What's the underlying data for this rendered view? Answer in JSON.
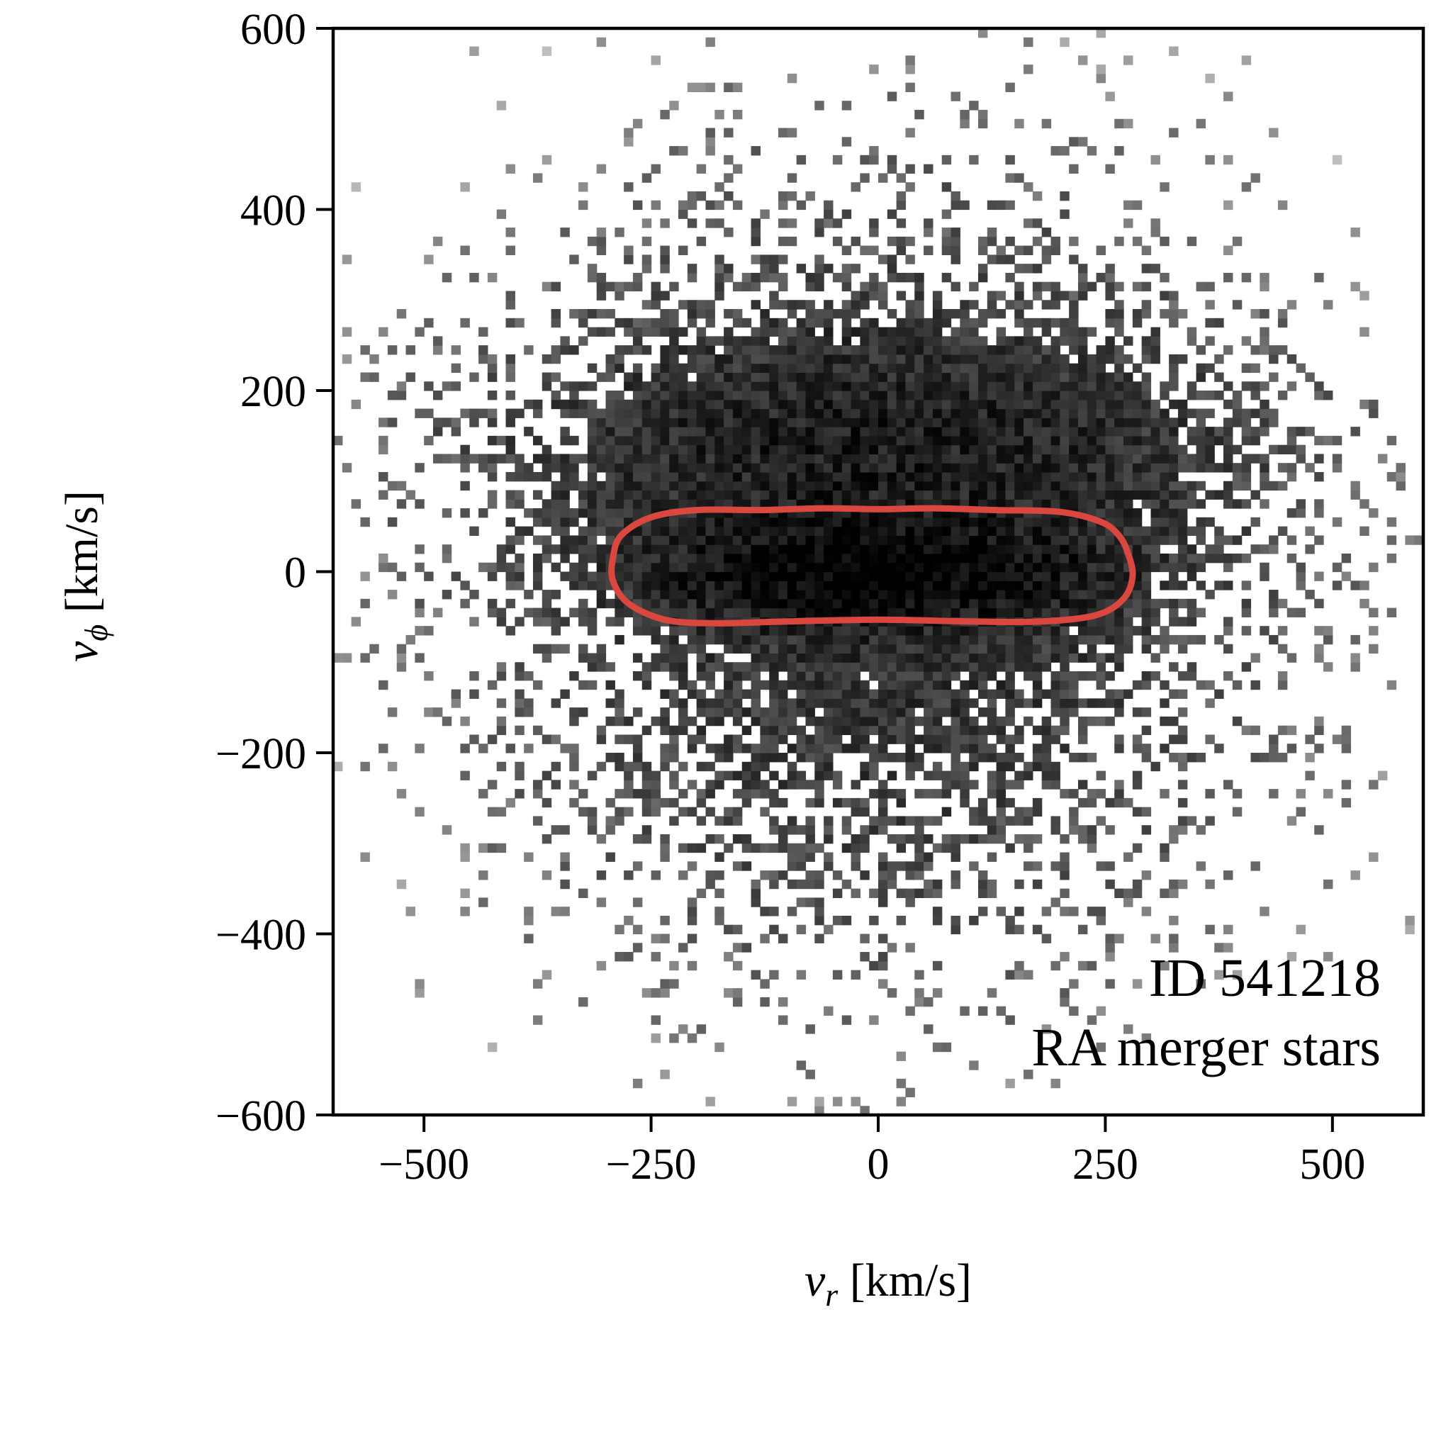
{
  "chart_data": {
    "type": "heatmap",
    "title": "",
    "xlabel": {
      "var": "v",
      "sub": "r",
      "unit": " [km/s]"
    },
    "ylabel": {
      "var": "v",
      "sub": "ϕ",
      "unit": " [km/s]"
    },
    "xlim": [
      -600,
      600
    ],
    "ylim": [
      -600,
      600
    ],
    "xticks": [
      -500,
      -250,
      0,
      250,
      500
    ],
    "xtick_labels": [
      "−500",
      "−250",
      "0",
      "250",
      "500"
    ],
    "yticks": [
      600,
      400,
      200,
      0,
      -200,
      -400,
      -600
    ],
    "ytick_labels": [
      "600",
      "400",
      "200",
      "0",
      "−200",
      "−400",
      "−600"
    ],
    "colormap": "gray_r",
    "grid": false,
    "density_model": {
      "core": {
        "center": [
          0,
          0
        ],
        "sigma_vr": 130,
        "sigma_vphi": 32,
        "weight": 1.0
      },
      "halo": {
        "center": [
          0,
          0
        ],
        "sigma_vr": 240,
        "sigma_vphi": 230,
        "weight": 0.18
      },
      "upper_lobe": {
        "center": [
          0,
          140
        ],
        "sigma_vr": 230,
        "sigma_vphi": 70,
        "weight": 0.22
      }
    },
    "contour": {
      "color": "#d9473e",
      "points": [
        [
          -292,
          15
        ],
        [
          -283,
          40
        ],
        [
          -250,
          60
        ],
        [
          -200,
          68
        ],
        [
          -130,
          68
        ],
        [
          -60,
          70
        ],
        [
          0,
          69
        ],
        [
          60,
          70
        ],
        [
          130,
          68
        ],
        [
          200,
          66
        ],
        [
          245,
          55
        ],
        [
          265,
          40
        ],
        [
          275,
          20
        ],
        [
          280,
          -5
        ],
        [
          270,
          -30
        ],
        [
          240,
          -48
        ],
        [
          180,
          -55
        ],
        [
          100,
          -55
        ],
        [
          0,
          -53
        ],
        [
          -100,
          -55
        ],
        [
          -180,
          -57
        ],
        [
          -235,
          -53
        ],
        [
          -275,
          -35
        ],
        [
          -292,
          -10
        ]
      ]
    },
    "annotations": [
      "ID 541218",
      "RA merger stars"
    ]
  }
}
